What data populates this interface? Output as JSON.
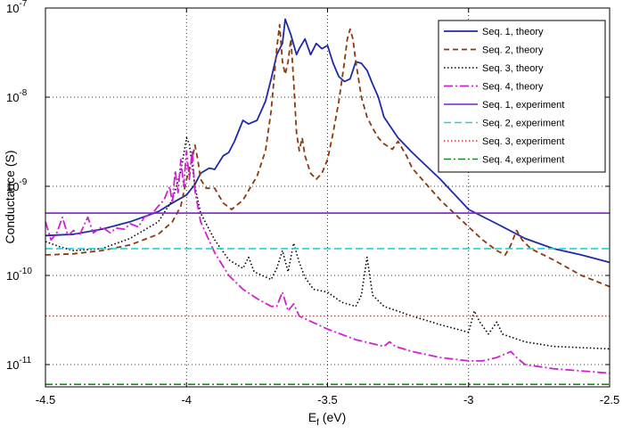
{
  "chart_data": {
    "type": "line",
    "xlabel": "E",
    "xlabel_sub": "f",
    "xlabel_unit": " (eV)",
    "ylabel": "Conductance (S)",
    "xlim": [
      -4.5,
      -2.5
    ],
    "ylim_log10": [
      -11.25,
      -7.0
    ],
    "yscale": "log",
    "grid": "dotted",
    "legend_position": "top-right",
    "x_ticks": [
      {
        "value": -4.5,
        "label": "-4.5"
      },
      {
        "value": -4.0,
        "label": "-4"
      },
      {
        "value": -3.5,
        "label": "-3.5"
      },
      {
        "value": -3.0,
        "label": "-3"
      },
      {
        "value": -2.5,
        "label": "-2.5"
      }
    ],
    "y_ticks": [
      {
        "exp": -11,
        "base": "10",
        "sup": "-11"
      },
      {
        "exp": -10,
        "base": "10",
        "sup": "-10"
      },
      {
        "exp": -9,
        "base": "10",
        "sup": "-9"
      },
      {
        "exp": -8,
        "base": "10",
        "sup": "-8"
      },
      {
        "exp": -7,
        "base": "10",
        "sup": "-7"
      }
    ],
    "series": [
      {
        "name": "Seq. 1, theory",
        "color": "#1f2aa8",
        "dash": "solid",
        "width": 1.8,
        "points": [
          [
            -4.5,
            2.8e-10
          ],
          [
            -4.4,
            2.9e-10
          ],
          [
            -4.3,
            3.3e-10
          ],
          [
            -4.2,
            4e-10
          ],
          [
            -4.1,
            5.2e-10
          ],
          [
            -4.05,
            6.5e-10
          ],
          [
            -4.0,
            8e-10
          ],
          [
            -3.97,
            1.05e-09
          ],
          [
            -3.95,
            1.4e-09
          ],
          [
            -3.92,
            1.6e-09
          ],
          [
            -3.9,
            1.55e-09
          ],
          [
            -3.87,
            2.2e-09
          ],
          [
            -3.85,
            2.4e-09
          ],
          [
            -3.83,
            3.2e-09
          ],
          [
            -3.8,
            5.5e-09
          ],
          [
            -3.78,
            5e-09
          ],
          [
            -3.75,
            5.5e-09
          ],
          [
            -3.72,
            9e-09
          ],
          [
            -3.7,
            1.6e-08
          ],
          [
            -3.68,
            3e-08
          ],
          [
            -3.66,
            4e-08
          ],
          [
            -3.65,
            7.5e-08
          ],
          [
            -3.63,
            5e-08
          ],
          [
            -3.61,
            3e-08
          ],
          [
            -3.6,
            3.5e-08
          ],
          [
            -3.58,
            4.5e-08
          ],
          [
            -3.56,
            3e-08
          ],
          [
            -3.54,
            4e-08
          ],
          [
            -3.52,
            3.5e-08
          ],
          [
            -3.5,
            3.8e-08
          ],
          [
            -3.48,
            2.4e-08
          ],
          [
            -3.46,
            1.7e-08
          ],
          [
            -3.44,
            1.5e-08
          ],
          [
            -3.42,
            1.6e-08
          ],
          [
            -3.4,
            2.5e-08
          ],
          [
            -3.38,
            2.4e-08
          ],
          [
            -3.36,
            2e-08
          ],
          [
            -3.34,
            1.4e-08
          ],
          [
            -3.32,
            1e-08
          ],
          [
            -3.3,
            6e-09
          ],
          [
            -3.25,
            3.5e-09
          ],
          [
            -3.2,
            2.4e-09
          ],
          [
            -3.1,
            1.2e-09
          ],
          [
            -3.0,
            5.5e-10
          ],
          [
            -2.9,
            3.8e-10
          ],
          [
            -2.8,
            2.6e-10
          ],
          [
            -2.7,
            2e-10
          ],
          [
            -2.6,
            1.7e-10
          ],
          [
            -2.5,
            1.4e-10
          ]
        ]
      },
      {
        "name": "Seq. 2, theory",
        "color": "#8b3a0f",
        "dash": "6,4",
        "width": 1.8,
        "points": [
          [
            -4.5,
            1.7e-10
          ],
          [
            -4.4,
            1.75e-10
          ],
          [
            -4.3,
            1.9e-10
          ],
          [
            -4.2,
            2.2e-10
          ],
          [
            -4.1,
            2.9e-10
          ],
          [
            -4.05,
            4e-10
          ],
          [
            -4.02,
            6e-10
          ],
          [
            -4.0,
            1.2e-09
          ],
          [
            -3.98,
            2e-09
          ],
          [
            -3.97,
            2.9e-09
          ],
          [
            -3.96,
            2e-09
          ],
          [
            -3.95,
            1.2e-09
          ],
          [
            -3.93,
            9.5e-10
          ],
          [
            -3.9,
            9.5e-10
          ],
          [
            -3.87,
            6.5e-10
          ],
          [
            -3.84,
            5.5e-10
          ],
          [
            -3.8,
            7e-10
          ],
          [
            -3.75,
            1.3e-09
          ],
          [
            -3.72,
            2.5e-09
          ],
          [
            -3.7,
            7e-09
          ],
          [
            -3.68,
            3.5e-08
          ],
          [
            -3.67,
            6.5e-08
          ],
          [
            -3.66,
            2.5e-08
          ],
          [
            -3.65,
            1.8e-08
          ],
          [
            -3.64,
            2.5e-08
          ],
          [
            -3.63,
            4.5e-08
          ],
          [
            -3.62,
            1.5e-08
          ],
          [
            -3.61,
            4e-09
          ],
          [
            -3.6,
            2.5e-09
          ],
          [
            -3.59,
            3.5e-09
          ],
          [
            -3.58,
            2.2e-09
          ],
          [
            -3.56,
            1.4e-09
          ],
          [
            -3.54,
            1.2e-09
          ],
          [
            -3.52,
            1.4e-09
          ],
          [
            -3.5,
            2e-09
          ],
          [
            -3.48,
            4e-09
          ],
          [
            -3.46,
            9e-09
          ],
          [
            -3.44,
            2.5e-08
          ],
          [
            -3.43,
            4.5e-08
          ],
          [
            -3.42,
            5.8e-08
          ],
          [
            -3.41,
            4.5e-08
          ],
          [
            -3.4,
            2.5e-08
          ],
          [
            -3.38,
            1e-08
          ],
          [
            -3.36,
            6e-09
          ],
          [
            -3.34,
            4.5e-09
          ],
          [
            -3.32,
            3.5e-09
          ],
          [
            -3.3,
            3e-09
          ],
          [
            -3.27,
            2.6e-09
          ],
          [
            -3.25,
            3.2e-09
          ],
          [
            -3.22,
            2.2e-09
          ],
          [
            -3.2,
            1.6e-09
          ],
          [
            -3.1,
            7e-10
          ],
          [
            -3.0,
            3.5e-10
          ],
          [
            -2.95,
            2.5e-10
          ],
          [
            -2.9,
            1.9e-10
          ],
          [
            -2.87,
            1.7e-10
          ],
          [
            -2.85,
            2.2e-10
          ],
          [
            -2.83,
            3.2e-10
          ],
          [
            -2.81,
            2.5e-10
          ],
          [
            -2.78,
            2e-10
          ],
          [
            -2.7,
            1.5e-10
          ],
          [
            -2.6,
            1e-10
          ],
          [
            -2.5,
            7.5e-11
          ]
        ]
      },
      {
        "name": "Seq. 3, theory",
        "color": "#000000",
        "dash": "1.5,2.5",
        "width": 1.6,
        "points": [
          [
            -4.5,
            2.4e-10
          ],
          [
            -4.45,
            2.1e-10
          ],
          [
            -4.4,
            1.9e-10
          ],
          [
            -4.3,
            2e-10
          ],
          [
            -4.2,
            2.6e-10
          ],
          [
            -4.1,
            4e-10
          ],
          [
            -4.05,
            7e-10
          ],
          [
            -4.02,
            1.5e-09
          ],
          [
            -4.0,
            3.5e-09
          ],
          [
            -3.99,
            3e-09
          ],
          [
            -3.97,
            1e-09
          ],
          [
            -3.95,
            5e-10
          ],
          [
            -3.9,
            2.5e-10
          ],
          [
            -3.85,
            1.5e-10
          ],
          [
            -3.8,
            1.2e-10
          ],
          [
            -3.78,
            1.6e-10
          ],
          [
            -3.76,
            1.1e-10
          ],
          [
            -3.7,
            9e-11
          ],
          [
            -3.68,
            1.2e-10
          ],
          [
            -3.66,
            1.9e-10
          ],
          [
            -3.64,
            1.1e-10
          ],
          [
            -3.62,
            2.3e-10
          ],
          [
            -3.6,
            1.4e-10
          ],
          [
            -3.58,
            9.5e-11
          ],
          [
            -3.55,
            7e-11
          ],
          [
            -3.5,
            6.5e-11
          ],
          [
            -3.45,
            5e-11
          ],
          [
            -3.4,
            4.5e-11
          ],
          [
            -3.38,
            6e-11
          ],
          [
            -3.36,
            1.6e-10
          ],
          [
            -3.34,
            6e-11
          ],
          [
            -3.3,
            4.5e-11
          ],
          [
            -3.2,
            3.5e-11
          ],
          [
            -3.1,
            2.8e-11
          ],
          [
            -3.0,
            2.3e-11
          ],
          [
            -2.98,
            4e-11
          ],
          [
            -2.96,
            3e-11
          ],
          [
            -2.93,
            2.2e-11
          ],
          [
            -2.9,
            3e-11
          ],
          [
            -2.88,
            2.2e-11
          ],
          [
            -2.8,
            1.8e-11
          ],
          [
            -2.7,
            1.6e-11
          ],
          [
            -2.5,
            1.5e-11
          ]
        ]
      },
      {
        "name": "Seq. 4, theory",
        "color": "#d020d0",
        "dash": "10,3,2,3",
        "width": 1.8,
        "points": [
          [
            -4.5,
            4e-10
          ],
          [
            -4.48,
            2.5e-10
          ],
          [
            -4.46,
            3e-10
          ],
          [
            -4.44,
            4.5e-10
          ],
          [
            -4.42,
            2.8e-10
          ],
          [
            -4.4,
            3.2e-10
          ],
          [
            -4.38,
            2.8e-10
          ],
          [
            -4.35,
            4.5e-10
          ],
          [
            -4.33,
            3e-10
          ],
          [
            -4.3,
            3.5e-10
          ],
          [
            -4.27,
            3e-10
          ],
          [
            -4.25,
            3.4e-10
          ],
          [
            -4.22,
            3.3e-10
          ],
          [
            -4.2,
            3.8e-10
          ],
          [
            -4.17,
            3.5e-10
          ],
          [
            -4.15,
            4.5e-10
          ],
          [
            -4.12,
            5e-10
          ],
          [
            -4.1,
            6e-10
          ],
          [
            -4.08,
            7e-10
          ],
          [
            -4.06,
            1e-09
          ],
          [
            -4.05,
            6.5e-10
          ],
          [
            -4.04,
            1.5e-09
          ],
          [
            -4.03,
            8.5e-10
          ],
          [
            -4.02,
            2e-09
          ],
          [
            -4.01,
            1e-09
          ],
          [
            -4.0,
            2.5e-09
          ],
          [
            -3.99,
            1.2e-09
          ],
          [
            -3.98,
            2.5e-09
          ],
          [
            -3.97,
            9e-10
          ],
          [
            -3.95,
            4e-10
          ],
          [
            -3.9,
            1.8e-10
          ],
          [
            -3.85,
            1e-10
          ],
          [
            -3.8,
            7e-11
          ],
          [
            -3.75,
            5.5e-11
          ],
          [
            -3.7,
            4.5e-11
          ],
          [
            -3.68,
            4.5e-11
          ],
          [
            -3.66,
            6.5e-11
          ],
          [
            -3.64,
            4e-11
          ],
          [
            -3.62,
            4.8e-11
          ],
          [
            -3.6,
            3.5e-11
          ],
          [
            -3.5,
            2.5e-11
          ],
          [
            -3.4,
            1.9e-11
          ],
          [
            -3.3,
            1.6e-11
          ],
          [
            -3.28,
            1.8e-11
          ],
          [
            -3.26,
            1.6e-11
          ],
          [
            -3.2,
            1.4e-11
          ],
          [
            -3.1,
            1.2e-11
          ],
          [
            -3.0,
            1.1e-11
          ],
          [
            -2.95,
            1.1e-11
          ],
          [
            -2.9,
            1.2e-11
          ],
          [
            -2.85,
            1.4e-11
          ],
          [
            -2.83,
            1.2e-11
          ],
          [
            -2.8,
            1e-11
          ],
          [
            -2.7,
            9e-12
          ],
          [
            -2.6,
            8.5e-12
          ],
          [
            -2.5,
            8e-12
          ]
        ]
      },
      {
        "name": "Seq. 1, experiment",
        "color": "#7a22c8",
        "dash": "solid",
        "width": 1.6,
        "points": [
          [
            -4.5,
            5e-10
          ],
          [
            -2.5,
            5e-10
          ]
        ]
      },
      {
        "name": "Seq. 2, experiment",
        "color": "#22d3d3",
        "dash": "8,4",
        "width": 1.6,
        "points": [
          [
            -4.5,
            2e-10
          ],
          [
            -2.5,
            2e-10
          ]
        ]
      },
      {
        "name": "Seq. 3, experiment",
        "color": "#e03030",
        "dash": "1.5,2.5",
        "width": 1.4,
        "points": [
          [
            -4.5,
            3.5e-11
          ],
          [
            -2.5,
            3.5e-11
          ]
        ]
      },
      {
        "name": "Seq. 4, experiment",
        "color": "#1a8a1a",
        "dash": "8,3,2,3",
        "width": 1.6,
        "points": [
          [
            -4.5,
            6e-12
          ],
          [
            -2.5,
            6e-12
          ]
        ]
      }
    ]
  }
}
